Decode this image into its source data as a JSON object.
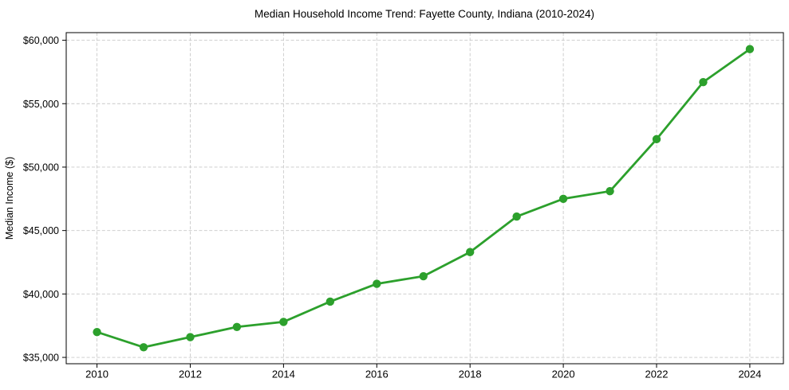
{
  "chart_data": {
    "type": "line",
    "title": "Median Household Income Trend: Fayette County, Indiana (2010-2024)",
    "ylabel": "Median Income ($)",
    "xlabel": "",
    "x": [
      2010,
      2011,
      2012,
      2013,
      2014,
      2015,
      2016,
      2017,
      2018,
      2019,
      2020,
      2021,
      2022,
      2023,
      2024
    ],
    "values": [
      37000,
      35800,
      36600,
      37400,
      37800,
      39400,
      40800,
      41400,
      43300,
      46100,
      47500,
      48100,
      52200,
      56700,
      59300
    ],
    "xlim": [
      2009.34,
      2024.72
    ],
    "ylim": [
      34500,
      60600
    ],
    "x_ticks": [
      2010,
      2012,
      2014,
      2016,
      2018,
      2020,
      2022,
      2024
    ],
    "x_tick_labels": [
      "2010",
      "2012",
      "2014",
      "2016",
      "2018",
      "2020",
      "2022",
      "2024"
    ],
    "y_ticks": [
      35000,
      40000,
      45000,
      50000,
      55000,
      60000
    ],
    "y_tick_labels": [
      "$35,000",
      "$40,000",
      "$45,000",
      "$50,000",
      "$55,000",
      "$60,000"
    ],
    "grid": "dashed",
    "legend": "none",
    "line_color": "#2ca02c",
    "marker": "circle"
  }
}
